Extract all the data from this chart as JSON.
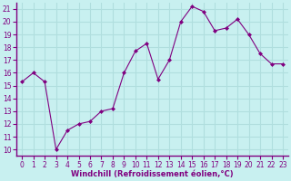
{
  "x": [
    0,
    1,
    2,
    3,
    4,
    5,
    6,
    7,
    8,
    9,
    10,
    11,
    12,
    13,
    14,
    15,
    16,
    17,
    18,
    19,
    20,
    21,
    22,
    23
  ],
  "y": [
    15.3,
    16.0,
    15.3,
    10.0,
    11.5,
    12.0,
    12.2,
    13.0,
    13.2,
    16.0,
    17.7,
    18.3,
    15.5,
    17.0,
    20.0,
    21.2,
    20.8,
    19.3,
    19.5,
    20.2,
    19.0,
    17.5,
    16.7,
    16.7
  ],
  "line_color": "#800080",
  "marker": "D",
  "marker_size": 2,
  "bg_color": "#c8f0f0",
  "grid_color": "#b0dede",
  "xlabel": "Windchill (Refroidissement éolien,°C)",
  "xlabel_color": "#800080",
  "tick_color": "#800080",
  "axis_line_color": "#800080",
  "ylim": [
    9.5,
    21.5
  ],
  "xlim": [
    -0.5,
    23.5
  ],
  "yticks": [
    10,
    11,
    12,
    13,
    14,
    15,
    16,
    17,
    18,
    19,
    20,
    21
  ],
  "xticks": [
    0,
    1,
    2,
    3,
    4,
    5,
    6,
    7,
    8,
    9,
    10,
    11,
    12,
    13,
    14,
    15,
    16,
    17,
    18,
    19,
    20,
    21,
    22,
    23
  ],
  "tick_fontsize": 5.5,
  "xlabel_fontsize": 6.0
}
